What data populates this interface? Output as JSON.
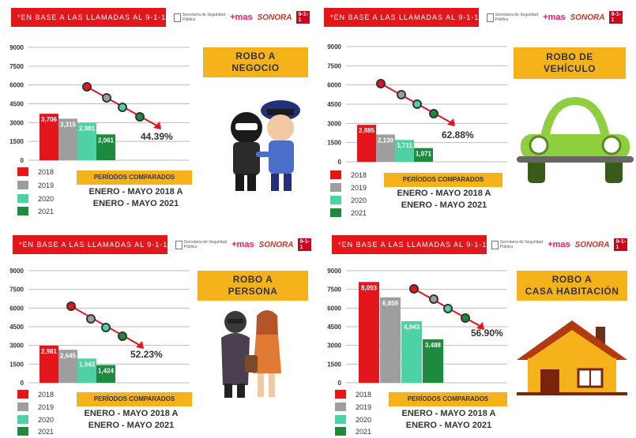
{
  "banner": "*EN BASE A LAS LLAMADAS AL 9-1-1",
  "logos": {
    "ssp": "Secretaría de Seguridad Pública",
    "mas": "+mas",
    "sonora": "SONORA",
    "n911": "9-1-1"
  },
  "periods_label": "PERÍODOS COMPARADOS",
  "range_line1": "ENERO - MAYO 2018 A",
  "range_line2": "ENERO - MAYO 2021",
  "legend": [
    "2018",
    "2019",
    "2020",
    "2021"
  ],
  "colors": {
    "y2018": "#e3161c",
    "y2019": "#9e9e9e",
    "y2020": "#4fd1a6",
    "y2021": "#1e8a3e",
    "banner": "#e3161c",
    "accent": "#f6b21b"
  },
  "chart_data": [
    {
      "type": "bar",
      "title": "ROBO A NEGOCIO",
      "title_lines": [
        "ROBO A",
        "NEGOCIO"
      ],
      "categories": [
        "2018",
        "2019",
        "2020",
        "2021"
      ],
      "values": [
        3706,
        3315,
        2981,
        2061
      ],
      "value_labels": [
        "3,706",
        "3,315",
        "2,981",
        "2,061"
      ],
      "yticks": [
        "0",
        "1500",
        "3000",
        "4500",
        "6000",
        "7500",
        "9000"
      ],
      "ylim": [
        0,
        9000
      ],
      "decrease": "44.39%"
    },
    {
      "type": "bar",
      "title": "ROBO DE VEHÍCULO",
      "title_lines": [
        "ROBO DE",
        "VEHÍCULO"
      ],
      "categories": [
        "2018",
        "2019",
        "2020",
        "2021"
      ],
      "values": [
        2885,
        2130,
        1711,
        1071
      ],
      "value_labels": [
        "2,885",
        "2,130",
        "1,711",
        "1,071"
      ],
      "yticks": [
        "0",
        "1500",
        "3000",
        "4500",
        "6000",
        "7500",
        "9000"
      ],
      "ylim": [
        0,
        9000
      ],
      "decrease": "62.88%"
    },
    {
      "type": "bar",
      "title": "ROBO A PERSONA",
      "title_lines": [
        "ROBO A",
        "PERSONA"
      ],
      "categories": [
        "2018",
        "2019",
        "2020",
        "2021"
      ],
      "values": [
        2981,
        2645,
        1943,
        1424
      ],
      "value_labels": [
        "2,981",
        "2,645",
        "1,943",
        "1,424"
      ],
      "yticks": [
        "0",
        "1500",
        "3000",
        "4500",
        "6000",
        "7500",
        "9000"
      ],
      "ylim": [
        0,
        9000
      ],
      "decrease": "52.23%"
    },
    {
      "type": "bar",
      "title": "ROBO A CASA HABITACIÓN",
      "title_lines": [
        "ROBO A",
        "CASA HABITACIÓN"
      ],
      "categories": [
        "2018",
        "2019",
        "2020",
        "2021"
      ],
      "values": [
        8093,
        6859,
        4943,
        3488
      ],
      "value_labels": [
        "8,093",
        "6,859",
        "4,943",
        "3,488"
      ],
      "yticks": [
        "0",
        "1500",
        "3000",
        "4500",
        "6000",
        "7500",
        "9000"
      ],
      "ylim": [
        0,
        9000
      ],
      "decrease": "56.90%"
    }
  ]
}
